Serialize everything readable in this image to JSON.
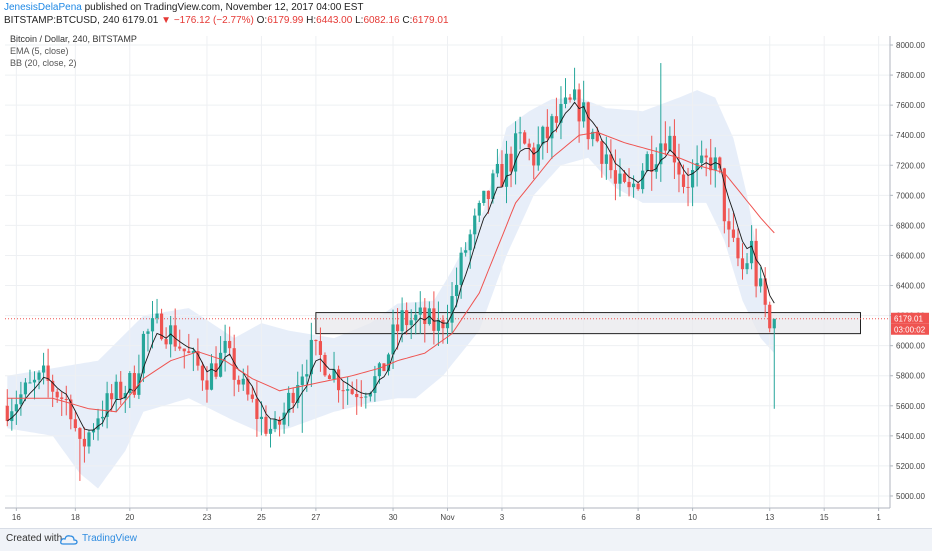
{
  "header": {
    "author": "JenesisDelaPena",
    "published": "published on TradingView.com, November 12, 2017 04:00 EST",
    "symbol": "BITSTAMP:BTCUSD, 240",
    "last": "6179.01",
    "change": "−176.12 (−2.77%)",
    "o_label": "O:",
    "o_value": "6179.99",
    "h_label": "H:",
    "h_value": "6443.00",
    "l_label": "L:",
    "l_value": "6082.16",
    "c_label": "C:",
    "c_value": "6179.01"
  },
  "legend": {
    "title": "Bitcoin / Dollar, 240, BITSTAMP",
    "ema": "EMA (5, close)",
    "bb": "BB (20, close, 2)"
  },
  "price_tag": {
    "value": "6179.01",
    "timer": "03:00:02"
  },
  "footer": {
    "created": "Created with",
    "brand": "TradingView"
  },
  "colors": {
    "up": "#26a69a",
    "down": "#ef5350",
    "ema": "#1a1a1a",
    "bb_mid": "#ef5350",
    "bb_fill": "#e3ebf8",
    "box_fill": "#e8e8ec",
    "box_stroke": "#222222",
    "price_line": "#ef5350"
  },
  "chart_data": {
    "type": "candlestick",
    "title": "Bitcoin / Dollar, 240, BITSTAMP",
    "y_ticks": [
      5000,
      5200,
      5400,
      5600,
      5800,
      6000,
      6200,
      6400,
      6600,
      6800,
      7000,
      7200,
      7400,
      7600,
      7800,
      8000
    ],
    "ylim": [
      4920,
      8060
    ],
    "x_ticks": [
      "16",
      "18",
      "20",
      "23",
      "25",
      "27",
      "30",
      "Nov",
      "3",
      "6",
      "8",
      "10",
      "13",
      "15",
      "1"
    ],
    "x_tick_bar": [
      2,
      15,
      27,
      44,
      56,
      68,
      85,
      97,
      109,
      127,
      139,
      151,
      168,
      180,
      192
    ],
    "n_bars": 195,
    "anchors": [
      [
        0,
        5600
      ],
      [
        8,
        5780
      ],
      [
        14,
        5600
      ],
      [
        16,
        5300
      ],
      [
        18,
        5420
      ],
      [
        20,
        5550
      ],
      [
        25,
        5700
      ],
      [
        28,
        5760
      ],
      [
        30,
        6050
      ],
      [
        34,
        6150
      ],
      [
        37,
        6050
      ],
      [
        41,
        5880
      ],
      [
        44,
        5800
      ],
      [
        48,
        5950
      ],
      [
        52,
        5700
      ],
      [
        56,
        5500
      ],
      [
        59,
        5420
      ],
      [
        61,
        5550
      ],
      [
        64,
        5800
      ],
      [
        67,
        5950
      ],
      [
        70,
        5900
      ],
      [
        73,
        5780
      ],
      [
        76,
        5700
      ],
      [
        82,
        5780
      ],
      [
        85,
        6050
      ],
      [
        87,
        6170
      ],
      [
        91,
        6170
      ],
      [
        95,
        6120
      ],
      [
        98,
        6300
      ],
      [
        101,
        6650
      ],
      [
        106,
        7000
      ],
      [
        110,
        7200
      ],
      [
        113,
        7350
      ],
      [
        116,
        7260
      ],
      [
        120,
        7450
      ],
      [
        124,
        7580
      ],
      [
        126,
        7600
      ],
      [
        128,
        7450
      ],
      [
        132,
        7280
      ],
      [
        134,
        7050
      ],
      [
        137,
        7000
      ],
      [
        140,
        7200
      ],
      [
        143,
        7320
      ],
      [
        145,
        7420
      ],
      [
        147,
        7300
      ],
      [
        149,
        7100
      ],
      [
        153,
        7150
      ],
      [
        155,
        7250
      ],
      [
        157,
        7100
      ],
      [
        159,
        6700
      ],
      [
        162,
        6500
      ],
      [
        164,
        6650
      ],
      [
        165,
        6450
      ],
      [
        167,
        6250
      ],
      [
        168,
        6100
      ],
      [
        169,
        6170
      ]
    ],
    "spikes": [
      [
        144,
        7880
      ],
      [
        169,
        5580
      ],
      [
        109,
        7300
      ],
      [
        87,
        6300
      ],
      [
        16,
        5100
      ],
      [
        65,
        5420
      ]
    ],
    "bb_upper_anchors": [
      [
        0,
        5800
      ],
      [
        20,
        5900
      ],
      [
        30,
        6200
      ],
      [
        40,
        6250
      ],
      [
        50,
        6050
      ],
      [
        56,
        6150
      ],
      [
        62,
        6100
      ],
      [
        72,
        6050
      ],
      [
        80,
        6150
      ],
      [
        86,
        6280
      ],
      [
        94,
        6300
      ],
      [
        98,
        6500
      ],
      [
        105,
        6900
      ],
      [
        110,
        7450
      ],
      [
        115,
        7560
      ],
      [
        120,
        7640
      ],
      [
        126,
        7650
      ],
      [
        132,
        7580
      ],
      [
        140,
        7560
      ],
      [
        148,
        7650
      ],
      [
        152,
        7700
      ],
      [
        156,
        7650
      ],
      [
        160,
        7380
      ],
      [
        163,
        7000
      ],
      [
        166,
        6500
      ],
      [
        169,
        6100
      ]
    ],
    "bb_lower_anchors": [
      [
        0,
        5450
      ],
      [
        10,
        5400
      ],
      [
        16,
        5150
      ],
      [
        20,
        5050
      ],
      [
        26,
        5300
      ],
      [
        30,
        5560
      ],
      [
        40,
        5650
      ],
      [
        50,
        5500
      ],
      [
        56,
        5420
      ],
      [
        62,
        5450
      ],
      [
        72,
        5560
      ],
      [
        80,
        5620
      ],
      [
        86,
        5650
      ],
      [
        90,
        5650
      ],
      [
        96,
        5800
      ],
      [
        100,
        5950
      ],
      [
        104,
        6100
      ],
      [
        110,
        6600
      ],
      [
        116,
        7000
      ],
      [
        122,
        7200
      ],
      [
        128,
        7250
      ],
      [
        134,
        7050
      ],
      [
        140,
        6950
      ],
      [
        148,
        6950
      ],
      [
        154,
        6950
      ],
      [
        158,
        6700
      ],
      [
        162,
        6300
      ],
      [
        166,
        6050
      ],
      [
        169,
        5950
      ]
    ],
    "bb_mid_anchors": [
      [
        0,
        5650
      ],
      [
        10,
        5650
      ],
      [
        18,
        5580
      ],
      [
        24,
        5560
      ],
      [
        30,
        5780
      ],
      [
        36,
        5900
      ],
      [
        42,
        5960
      ],
      [
        48,
        5900
      ],
      [
        54,
        5780
      ],
      [
        60,
        5700
      ],
      [
        68,
        5750
      ],
      [
        76,
        5800
      ],
      [
        82,
        5850
      ],
      [
        86,
        5900
      ],
      [
        92,
        5950
      ],
      [
        98,
        6080
      ],
      [
        104,
        6350
      ],
      [
        108,
        6650
      ],
      [
        112,
        6950
      ],
      [
        116,
        7100
      ],
      [
        120,
        7250
      ],
      [
        126,
        7400
      ],
      [
        130,
        7420
      ],
      [
        136,
        7350
      ],
      [
        142,
        7300
      ],
      [
        148,
        7250
      ],
      [
        152,
        7200
      ],
      [
        158,
        7150
      ],
      [
        162,
        7000
      ],
      [
        166,
        6850
      ],
      [
        169,
        6750
      ]
    ],
    "box": {
      "bar_start": 68,
      "bar_end": 188,
      "price_top": 6220,
      "price_bottom": 6080
    },
    "current_price": 6179.01
  }
}
